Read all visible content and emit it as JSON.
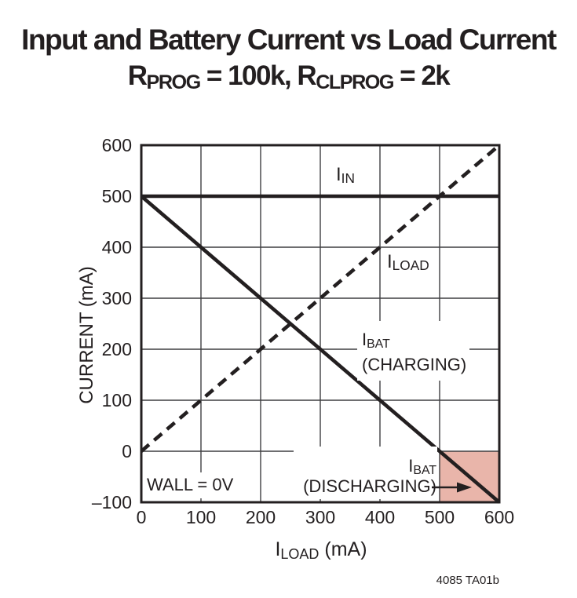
{
  "title": {
    "line1": "Input and Battery Current vs Load Current",
    "line2_segments": [
      [
        "R"
      ],
      [
        "PROG",
        "sub"
      ],
      [
        " = 100k, R"
      ],
      [
        "CLPROG",
        "sub"
      ],
      [
        " = 2k"
      ]
    ]
  },
  "footer": {
    "doc_code": "4085 TA01b"
  },
  "colors": {
    "ink": "#231f20",
    "grid": "#3f3f41",
    "shaded_region": "#e9b5aa",
    "background": "#ffffff"
  },
  "chart_data": {
    "type": "line",
    "title": "Input and Battery Current vs Load Current",
    "subtitle": "RPROG = 100k, RCLPROG = 2k",
    "xlabel": "ILOAD (mA)",
    "xlabel_segments": [
      [
        "I"
      ],
      [
        "LOAD",
        "sub"
      ],
      [
        " (mA)"
      ]
    ],
    "ylabel": "CURRENT (mA)",
    "xlim": [
      0,
      600
    ],
    "ylim": [
      -100,
      600
    ],
    "x_ticks": [
      0,
      100,
      200,
      300,
      400,
      500,
      600
    ],
    "x_tick_labels": [
      "0",
      "100",
      "200",
      "300",
      "400",
      "500",
      "600"
    ],
    "y_ticks": [
      600,
      500,
      400,
      300,
      200,
      100,
      0,
      -100
    ],
    "y_tick_labels": [
      "600",
      "500",
      "400",
      "300",
      "200",
      "100",
      "0",
      "–100"
    ],
    "grid": true,
    "legend_position": "in-plot-annotations",
    "series": [
      {
        "name": "IIN",
        "style": "solid",
        "x": [
          0,
          600
        ],
        "y": [
          500,
          500
        ]
      },
      {
        "name": "ILOAD",
        "style": "dashed",
        "x": [
          0,
          600
        ],
        "y": [
          0,
          600
        ]
      },
      {
        "name": "IBAT",
        "style": "solid",
        "x": [
          0,
          600
        ],
        "y": [
          500,
          -100
        ]
      }
    ],
    "shaded_region": {
      "label": "IBAT (DISCHARGING)",
      "x": [
        500,
        600
      ],
      "y": [
        -100,
        0
      ],
      "color": "#e9b5aa"
    },
    "annotations": {
      "iin": {
        "segments": [
          [
            "I"
          ],
          [
            "IN",
            "sub"
          ]
        ]
      },
      "iload": {
        "segments": [
          [
            "I"
          ],
          [
            "LOAD",
            "sub"
          ]
        ]
      },
      "ibat_charging": {
        "line1": [
          [
            "I"
          ],
          [
            "BAT",
            "sub"
          ]
        ],
        "line2": [
          [
            "(CHARGING)"
          ]
        ]
      },
      "wall": {
        "line1": [
          [
            "WALL = 0V"
          ]
        ]
      },
      "ibat_discharging": {
        "line1": [
          [
            "I"
          ],
          [
            "BAT",
            "sub"
          ]
        ],
        "line2": [
          [
            "(DISCHARGING)"
          ]
        ]
      }
    }
  }
}
